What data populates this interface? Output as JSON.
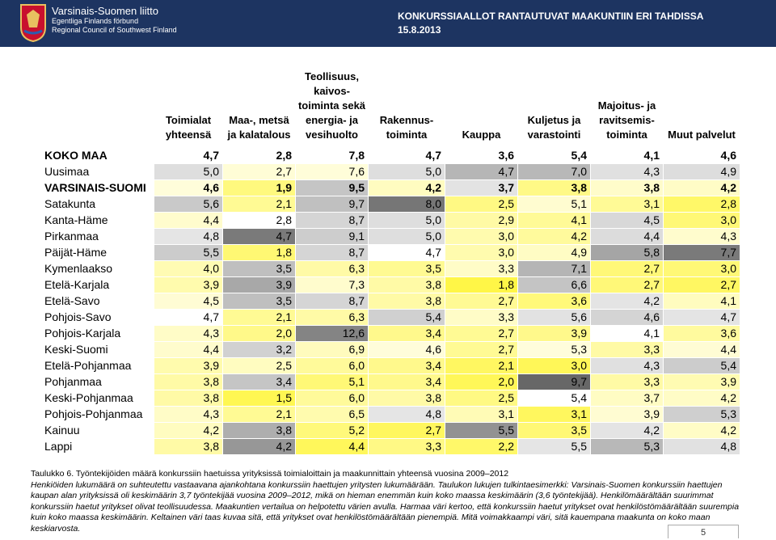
{
  "header": {
    "org_name": "Varsinais-Suomen liitto",
    "org_name_sv": "Egentliga Finlands förbund",
    "org_name_en": "Regional Council of Southwest Finland",
    "title": "KONKURSSIAALLOT RANTAUTUVAT MAAKUNTIIN ERI TAHDISSA",
    "date": "15.8.2013"
  },
  "table": {
    "columns": [
      "Toimialat yhteensä",
      "Maa-, metsä ja kalatalous",
      "Teollisuus, kaivos-toiminta sekä energia- ja vesihuolto",
      "Rakennus-toiminta",
      "Kauppa",
      "Kuljetus ja varastointi",
      "Majoitus- ja ravitsemis-toiminta",
      "Muut palvelut"
    ],
    "rows": [
      {
        "label": "KOKO MAA",
        "values": [
          "4,7",
          "2,8",
          "7,8",
          "4,7",
          "3,6",
          "5,4",
          "4,1",
          "4,6"
        ]
      },
      {
        "label": "Uusimaa",
        "values": [
          "5,0",
          "2,7",
          "7,6",
          "5,0",
          "4,7",
          "7,0",
          "4,3",
          "4,9"
        ]
      },
      {
        "label": "VARSINAIS-SUOMI",
        "values": [
          "4,6",
          "1,9",
          "9,5",
          "4,2",
          "3,7",
          "3,8",
          "3,8",
          "4,2"
        ]
      },
      {
        "label": "Satakunta",
        "values": [
          "5,6",
          "2,1",
          "9,7",
          "8,0",
          "2,5",
          "5,1",
          "3,1",
          "2,8"
        ]
      },
      {
        "label": "Kanta-Häme",
        "values": [
          "4,4",
          "2,8",
          "8,7",
          "5,0",
          "2,9",
          "4,1",
          "4,5",
          "3,0"
        ]
      },
      {
        "label": "Pirkanmaa",
        "values": [
          "4,8",
          "4,7",
          "9,1",
          "5,0",
          "3,0",
          "4,2",
          "4,4",
          "4,3"
        ]
      },
      {
        "label": "Päijät-Häme",
        "values": [
          "5,5",
          "1,8",
          "8,7",
          "4,7",
          "3,0",
          "4,9",
          "5,8",
          "7,7"
        ]
      },
      {
        "label": "Kymenlaakso",
        "values": [
          "4,0",
          "3,5",
          "6,3",
          "3,5",
          "3,3",
          "7,1",
          "2,7",
          "3,0"
        ]
      },
      {
        "label": "Etelä-Karjala",
        "values": [
          "3,9",
          "3,9",
          "7,3",
          "3,8",
          "1,8",
          "6,6",
          "2,7",
          "2,7"
        ]
      },
      {
        "label": "Etelä-Savo",
        "values": [
          "4,5",
          "3,5",
          "8,7",
          "3,8",
          "2,7",
          "3,6",
          "4,2",
          "4,1"
        ]
      },
      {
        "label": "Pohjois-Savo",
        "values": [
          "4,7",
          "2,1",
          "6,3",
          "5,4",
          "3,3",
          "5,6",
          "4,6",
          "4,7"
        ]
      },
      {
        "label": "Pohjois-Karjala",
        "values": [
          "4,3",
          "2,0",
          "12,6",
          "3,4",
          "2,7",
          "3,9",
          "4,1",
          "3,6"
        ]
      },
      {
        "label": "Keski-Suomi",
        "values": [
          "4,4",
          "3,2",
          "6,9",
          "4,6",
          "2,7",
          "5,3",
          "3,3",
          "4,4"
        ]
      },
      {
        "label": "Etelä-Pohjanmaa",
        "values": [
          "3,9",
          "2,5",
          "6,0",
          "3,4",
          "2,1",
          "3,0",
          "4,3",
          "5,4"
        ]
      },
      {
        "label": "Pohjanmaa",
        "values": [
          "3,8",
          "3,4",
          "5,1",
          "3,4",
          "2,0",
          "9,7",
          "3,3",
          "3,9"
        ]
      },
      {
        "label": "Keski-Pohjanmaa",
        "values": [
          "3,8",
          "1,5",
          "6,0",
          "3,8",
          "2,5",
          "5,4",
          "3,7",
          "4,2"
        ]
      },
      {
        "label": "Pohjois-Pohjanmaa",
        "values": [
          "4,3",
          "2,1",
          "6,5",
          "4,8",
          "3,1",
          "3,1",
          "3,9",
          "5,3"
        ]
      },
      {
        "label": "Kainuu",
        "values": [
          "4,2",
          "3,8",
          "5,2",
          "2,7",
          "5,5",
          "3,5",
          "4,2",
          "4,2"
        ]
      },
      {
        "label": "Lappi",
        "values": [
          "3,8",
          "4,2",
          "4,4",
          "3,3",
          "2,2",
          "5,5",
          "5,3",
          "4,8"
        ]
      }
    ]
  },
  "caption": {
    "title": "Taulukko 6. Työntekijöiden määrä konkurssiin haetuissa yrityksissä toimialoittain ja maakunnittain yhteensä vuosina 2009–2012",
    "text": "Henkiöiden lukumäärä on suhteutettu vastaavana ajankohtana konkurssiin haettujen yritysten lukumäärään. Taulukon lukujen tulkintaesimerkki: Varsinais-Suomen konkurssiin haettujen kaupan alan yrityksissä oli keskimäärin 3,7 työntekijää vuosina 2009–2012, mikä on hieman enemmän kuin koko maassa keskimäärin (3,6 työntekijää). Henkilömäärältään suurimmat konkurssiin haetut yritykset olivat teollisuudessa. Maakuntien vertailua on helpotettu värien avulla. Harmaa väri kertoo, että konkurssiin haetut yritykset ovat henkilöstömäärältään suurempia kuin koko maassa keskimäärin. Keltainen väri taas kuvaa sitä, että yritykset ovat henkilöstömäärältään pienempiä. Mitä voimakkaampi väri, sitä kauempana maakunta on koko maan keskiarvosta."
  },
  "page_number": "5"
}
